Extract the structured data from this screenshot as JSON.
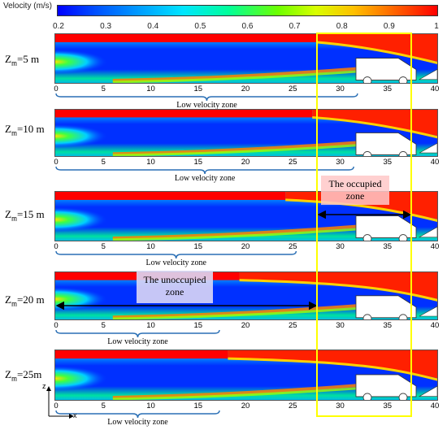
{
  "colorbar": {
    "title": "Velocity (m/s)",
    "ticks": [
      "0.2",
      "0.3",
      "0.4",
      "0.5",
      "0.6",
      "0.7",
      "0.8",
      "0.9",
      "1"
    ]
  },
  "axis_ticks": [
    "0",
    "5",
    "10",
    "15",
    "20",
    "25",
    "30",
    "35",
    "40"
  ],
  "cases": [
    {
      "label_prefix": "Z",
      "label_sub": "m",
      "label_suffix": "=5 m",
      "zone_label": "Low velocity zone"
    },
    {
      "label_prefix": "Z",
      "label_sub": "m",
      "label_suffix": "=10 m",
      "zone_label": "Low velocity zone"
    },
    {
      "label_prefix": "Z",
      "label_sub": "m",
      "label_suffix": "=15 m",
      "zone_label": "Low velocity zone"
    },
    {
      "label_prefix": "Z",
      "label_sub": "m",
      "label_suffix": "=20 m",
      "zone_label": "Low velocity zone"
    },
    {
      "label_prefix": "Z",
      "label_sub": "m",
      "label_suffix": "=25m",
      "zone_label": "Low velocity zone"
    }
  ],
  "annotations": {
    "occupied": "The occupied zone",
    "unoccupied": "The unoccupied zone"
  },
  "axes_icon": {
    "z": "z",
    "x": "x"
  },
  "colors": {
    "low": "#0000ff",
    "high": "#ff0000",
    "highlight_frame": "#ffff00",
    "occupied_box": "#ffc8c8",
    "unoccupied_box": "#dcd7f5"
  }
}
